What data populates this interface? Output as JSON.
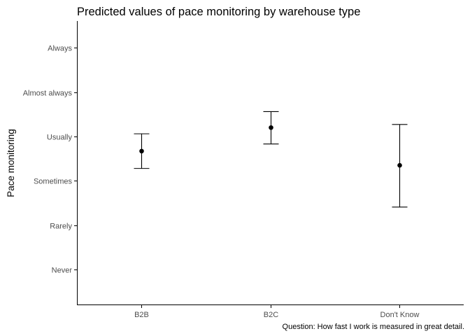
{
  "chart_data": {
    "type": "scatter",
    "title": "Predicted values of pace monitoring by warehouse type",
    "ylabel": "Pace monitoring",
    "xlabel": "",
    "caption": "Question: How fast I work is measured in great detail.",
    "categories": [
      "B2B",
      "B2C",
      "Don't Know"
    ],
    "y_ticks": [
      {
        "value": 1,
        "label": "Never"
      },
      {
        "value": 2,
        "label": "Rarely"
      },
      {
        "value": 3,
        "label": "Sometimes"
      },
      {
        "value": 4,
        "label": "Usually"
      },
      {
        "value": 5,
        "label": "Almost always"
      },
      {
        "value": 6,
        "label": "Always"
      }
    ],
    "ylim": [
      0.2,
      6.6
    ],
    "points": [
      {
        "category": "B2B",
        "value": 3.67,
        "lower": 3.28,
        "upper": 4.06
      },
      {
        "category": "B2C",
        "value": 4.2,
        "lower": 3.83,
        "upper": 4.56
      },
      {
        "category": "Don't Know",
        "value": 3.35,
        "lower": 2.41,
        "upper": 4.27
      }
    ],
    "grid": false,
    "colors": {
      "point": "#000000",
      "axis": "#000000",
      "tick_label": "#4d4d4d"
    }
  }
}
